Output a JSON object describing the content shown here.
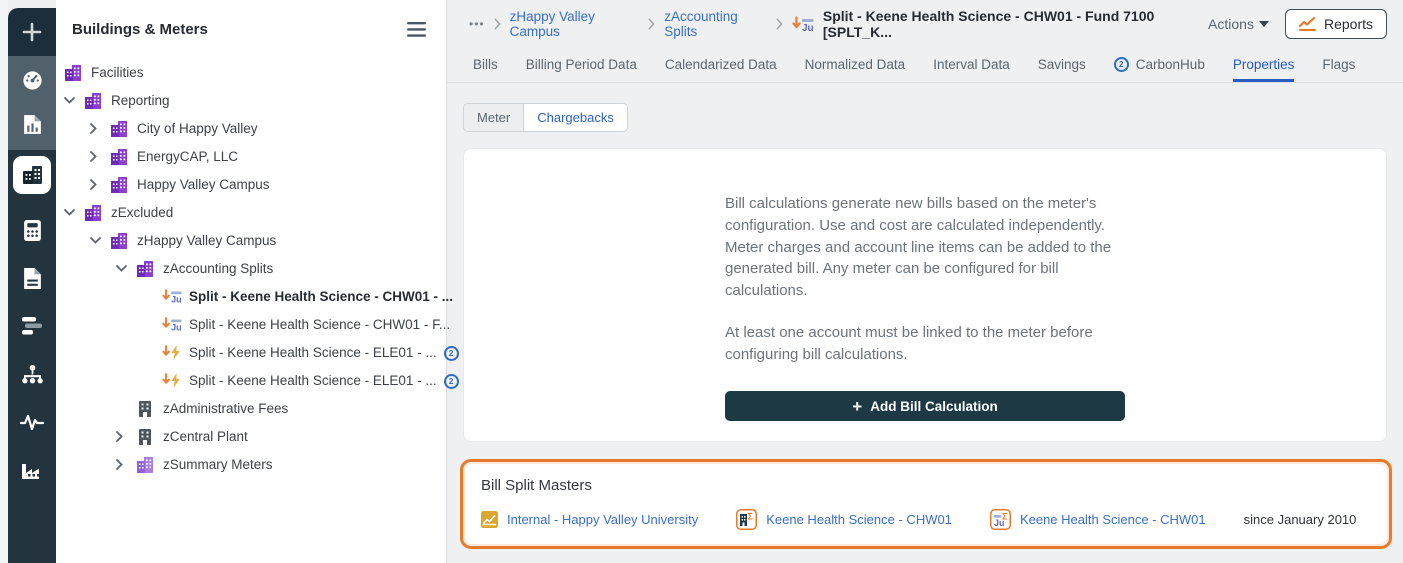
{
  "colors": {
    "accent_orange": "#e87a2a",
    "link_blue": "#3a6fc6",
    "tab_active_blue": "#2b5bbf",
    "sidebar_bg": "#24343f",
    "button_dark": "#1c3944",
    "tree_purple": "#8a3fd0"
  },
  "rail": {
    "icons": [
      "plus",
      "dashboard-gauge",
      "report-document",
      "buildings-meters",
      "calculator",
      "bill-document",
      "chargeback-bars",
      "org-chart",
      "interval-pulse",
      "plant-factory"
    ],
    "active_icon": "buildings-meters"
  },
  "tree": {
    "title": "Buildings & Meters",
    "items": [
      {
        "label": "Facilities",
        "level": 0,
        "chevron": "none",
        "icon": "building-purple"
      },
      {
        "label": "Reporting",
        "level": 0,
        "chevron": "down",
        "icon": "building-purple"
      },
      {
        "label": "City of Happy Valley",
        "level": 1,
        "chevron": "right",
        "icon": "building-purple"
      },
      {
        "label": "EnergyCAP, LLC",
        "level": 1,
        "chevron": "right",
        "icon": "building-purple"
      },
      {
        "label": "Happy Valley Campus",
        "level": 1,
        "chevron": "right",
        "icon": "building-purple"
      },
      {
        "label": "zExcluded",
        "level": 0,
        "chevron": "down",
        "icon": "building-purple"
      },
      {
        "label": "zHappy Valley Campus",
        "level": 1,
        "chevron": "down",
        "icon": "building-purple"
      },
      {
        "label": "zAccounting Splits",
        "level": 2,
        "chevron": "down",
        "icon": "building-purple"
      },
      {
        "label": "Split - Keene Health Science - CHW01 - ...",
        "level": 3,
        "chevron": "none",
        "icon": "meter-chilled-water",
        "selected": true
      },
      {
        "label": "Split - Keene Health Science - CHW01 - F...",
        "level": 3,
        "chevron": "none",
        "icon": "meter-chilled-water"
      },
      {
        "label": "Split - Keene Health Science - ELE01 - ...",
        "level": 3,
        "chevron": "none",
        "icon": "meter-electric",
        "carbonhub": true
      },
      {
        "label": "Split - Keene Health Science - ELE01 - ...",
        "level": 3,
        "chevron": "none",
        "icon": "meter-electric",
        "carbonhub": true
      },
      {
        "label": "zAdministrative Fees",
        "level": 2,
        "chevron": "none",
        "icon": "building-dark"
      },
      {
        "label": "zCentral Plant",
        "level": 2,
        "chevron": "right",
        "icon": "building-dark"
      },
      {
        "label": "zSummary Meters",
        "level": 2,
        "chevron": "right",
        "icon": "building-purple-light"
      }
    ]
  },
  "breadcrumb": {
    "more": "•••",
    "links": [
      "zHappy Valley Campus",
      "zAccounting Splits"
    ],
    "current": "Split - Keene Health Science - CHW01 - Fund 7100 [SPLT_K...",
    "actions_label": "Actions",
    "reports_label": "Reports"
  },
  "tabs": [
    {
      "label": "Bills"
    },
    {
      "label": "Billing Period Data"
    },
    {
      "label": "Calendarized Data"
    },
    {
      "label": "Normalized Data"
    },
    {
      "label": "Interval Data"
    },
    {
      "label": "Savings"
    },
    {
      "label": "CarbonHub",
      "icon": "carbonhub"
    },
    {
      "label": "Properties",
      "active": true
    },
    {
      "label": "Flags"
    }
  ],
  "subtabs": [
    {
      "label": "Meter"
    },
    {
      "label": "Chargebacks",
      "active": true
    }
  ],
  "bill_calculations": {
    "paragraph_1": "Bill calculations generate new bills based on the meter's configuration. Use and cost are calculated independently. Meter charges and account line items can be added to the generated bill. Any meter can be configured for bill calculations.",
    "paragraph_2": "At least one account must be linked to the meter before configuring bill calculations.",
    "add_button_label": "Add Bill Calculation"
  },
  "bill_split_masters": {
    "title": "Bill Split Masters",
    "items": [
      {
        "label": "Internal - Happy Valley University",
        "icon": "report-gold"
      },
      {
        "label": "Keene Health Science - CHW01",
        "icon": "building-sigma"
      },
      {
        "label": "Keene Health Science - CHW01",
        "icon": "meter-sigma"
      }
    ],
    "since": "since January 2010"
  }
}
